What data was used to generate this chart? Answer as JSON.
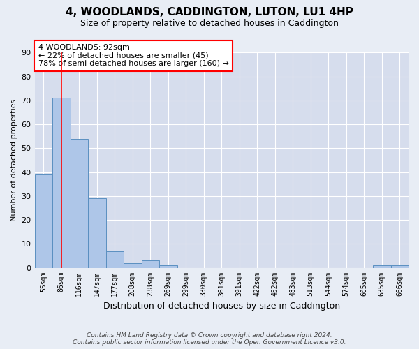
{
  "title": "4, WOODLANDS, CADDINGTON, LUTON, LU1 4HP",
  "subtitle": "Size of property relative to detached houses in Caddington",
  "xlabel": "Distribution of detached houses by size in Caddington",
  "ylabel": "Number of detached properties",
  "categories": [
    "55sqm",
    "86sqm",
    "116sqm",
    "147sqm",
    "177sqm",
    "208sqm",
    "238sqm",
    "269sqm",
    "299sqm",
    "330sqm",
    "361sqm",
    "391sqm",
    "422sqm",
    "452sqm",
    "483sqm",
    "513sqm",
    "544sqm",
    "574sqm",
    "605sqm",
    "635sqm",
    "666sqm"
  ],
  "values": [
    39,
    71,
    54,
    29,
    7,
    2,
    3,
    1,
    0,
    0,
    0,
    0,
    0,
    0,
    0,
    0,
    0,
    0,
    0,
    1,
    1
  ],
  "bar_color": "#aec6e8",
  "bar_edge_color": "#5a8fc0",
  "ylim": [
    0,
    90
  ],
  "yticks": [
    0,
    10,
    20,
    30,
    40,
    50,
    60,
    70,
    80,
    90
  ],
  "red_line_x": 1,
  "annotation_text": "4 WOODLANDS: 92sqm\n← 22% of detached houses are smaller (45)\n78% of semi-detached houses are larger (160) →",
  "annotation_box_color": "white",
  "annotation_border_color": "red",
  "footer_line1": "Contains HM Land Registry data © Crown copyright and database right 2024.",
  "footer_line2": "Contains public sector information licensed under the Open Government Licence v3.0.",
  "background_color": "#e8edf5",
  "plot_background_color": "#d6dded"
}
